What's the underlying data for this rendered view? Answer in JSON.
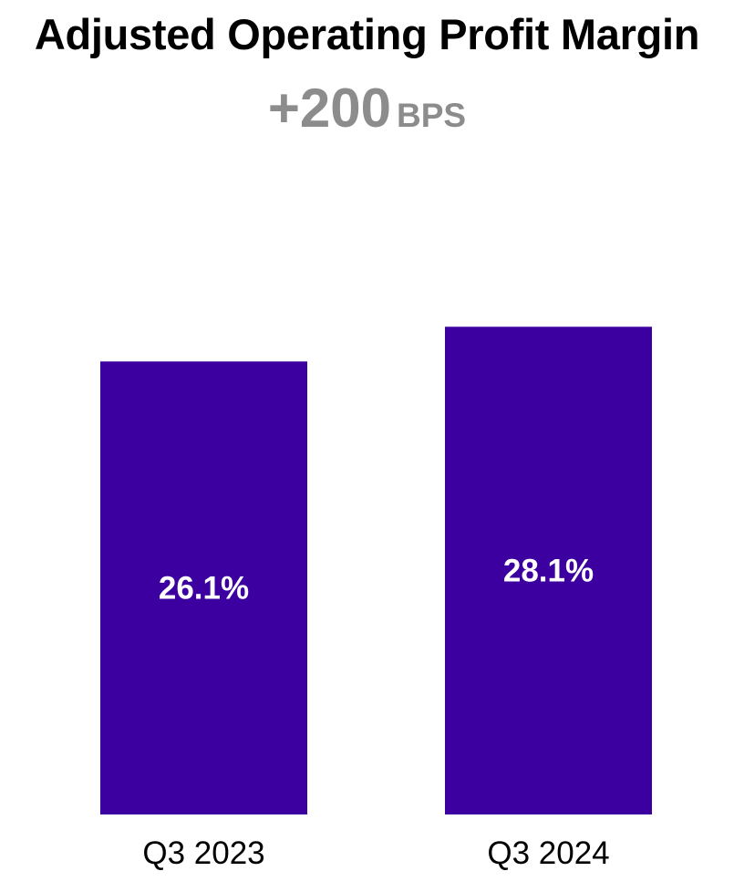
{
  "header": {
    "title": "Adjusted Operating Profit Margin",
    "change_value": "+200",
    "change_unit": "BPS"
  },
  "chart_data": {
    "type": "bar",
    "title": "Adjusted Operating Profit Margin",
    "categories": [
      "Q3 2023",
      "Q3 2024"
    ],
    "values": [
      26.1,
      28.1
    ],
    "value_labels": [
      "26.1%",
      "28.1%"
    ],
    "unit": "%",
    "bar_color": "#3d00a0",
    "label_color": "#ffffff",
    "xlabel": "",
    "ylabel": "",
    "grid": false,
    "legend": "none"
  }
}
